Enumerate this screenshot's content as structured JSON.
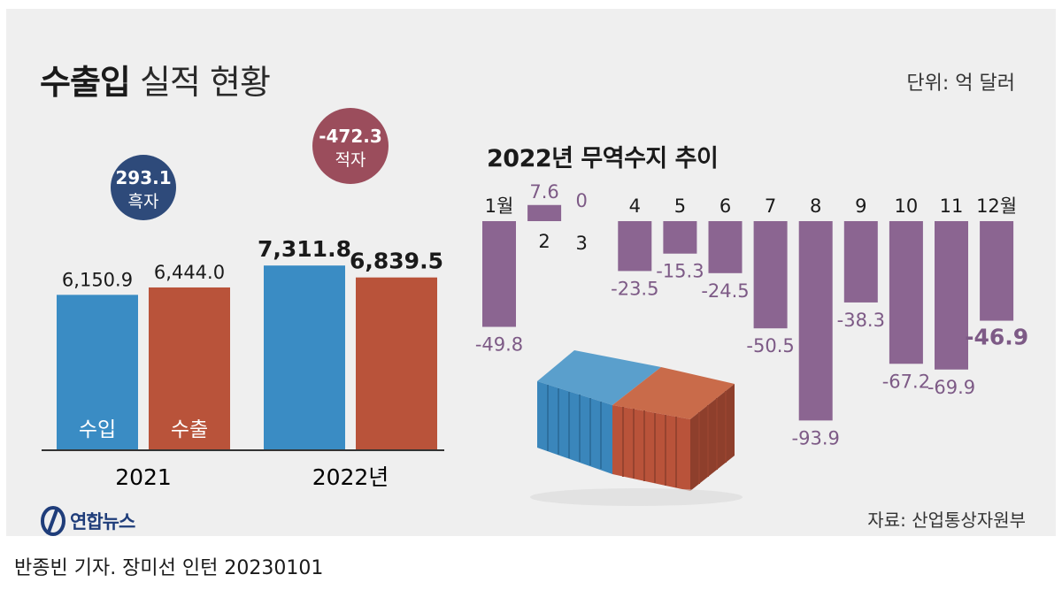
{
  "header": {
    "title_bold": "수출입",
    "title_light": "실적 현황",
    "unit": "단위: 억 달러",
    "credit": "반종빈 기자. 장미선 인턴  20230101",
    "source": "자료: 산업통상자원부",
    "logo_text": "연합뉴스"
  },
  "colors": {
    "import": "#3a8cc4",
    "export": "#b9533a",
    "surplus_badge": "#2e4a7a",
    "deficit_badge": "#9b4d5c",
    "balance_bar": "#8b6591",
    "balance_label": "#7d5a86"
  },
  "chart_data": [
    {
      "type": "bar",
      "title": "",
      "categories": [
        "2021",
        "2022년"
      ],
      "series": [
        {
          "name": "수입",
          "values": [
            6150.9,
            7311.8
          ],
          "labels": [
            "6,150.9",
            "7,311.8"
          ]
        },
        {
          "name": "수출",
          "values": [
            6444.0,
            6839.5
          ],
          "labels": [
            "6,444.0",
            "6,839.5"
          ]
        }
      ],
      "balance": [
        {
          "value": 293.1,
          "label": "293.1",
          "text": "흑자"
        },
        {
          "value": -472.3,
          "label": "-472.3",
          "text": "적자"
        }
      ],
      "ylim": [
        0,
        8000
      ]
    },
    {
      "type": "bar",
      "title": "2022년 무역수지 추이",
      "categories": [
        "1월",
        "2",
        "3",
        "4",
        "5",
        "6",
        "7",
        "8",
        "9",
        "10",
        "11",
        "12월"
      ],
      "values": [
        -49.8,
        7.6,
        0,
        -23.5,
        -15.3,
        -24.5,
        -50.5,
        -93.9,
        -38.3,
        -67.2,
        -69.9,
        -46.9
      ],
      "labels": [
        "-49.8",
        "7.6",
        "0",
        "-23.5",
        "-15.3",
        "-24.5",
        "-50.5",
        "-93.9",
        "-38.3",
        "-67.2",
        "-69.9",
        "-46.9"
      ],
      "ylim": [
        -100,
        10
      ]
    }
  ]
}
